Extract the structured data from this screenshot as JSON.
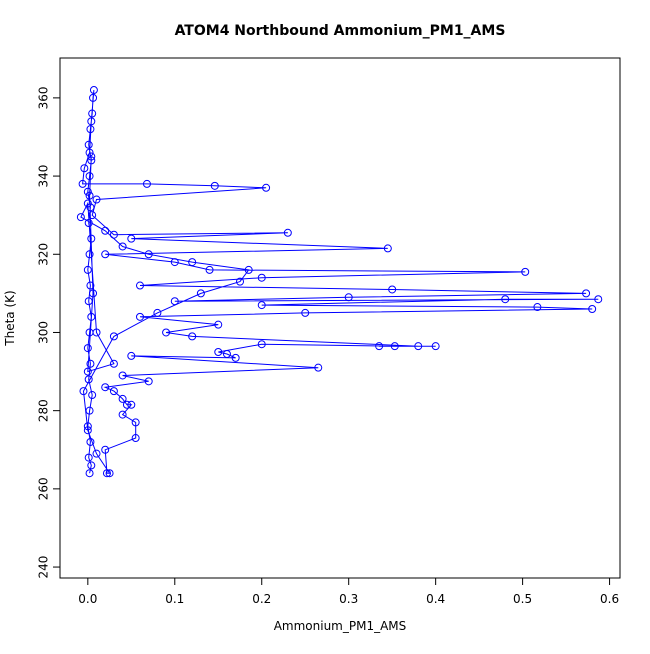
{
  "chart_data": {
    "type": "line",
    "title": "ATOM4 Northbound Ammonium_PM1_AMS",
    "x_label": "Ammonium_PM1_AMS",
    "y_label": "Theta (K)",
    "color": "#0000ff",
    "x": [
      0.002,
      0.004,
      0.001,
      0.003,
      0.0,
      0.002,
      0.005,
      0.001,
      0.003,
      0.0,
      0.002,
      0.004,
      0.001,
      0.003,
      0.0,
      0.002,
      0.004,
      0.001,
      0.003,
      0.0,
      0.002,
      0.004,
      0.001,
      0.003,
      0.005,
      0.006,
      0.007,
      0.004,
      0.002,
      -0.004,
      -0.006,
      0.068,
      0.146,
      0.205,
      0.01,
      0.005,
      0.03,
      0.23,
      0.05,
      0.345,
      0.02,
      0.1,
      0.14,
      0.503,
      0.2,
      0.06,
      0.35,
      0.573,
      0.3,
      0.1,
      0.587,
      0.48,
      0.2,
      0.517,
      0.58,
      0.25,
      0.06,
      0.15,
      0.09,
      0.12,
      0.38,
      0.4,
      0.335,
      0.353,
      0.2,
      0.15,
      0.16,
      0.17,
      0.05,
      0.265,
      0.04,
      0.07,
      0.02,
      0.03,
      0.04,
      0.045,
      0.05,
      0.04,
      0.055,
      0.055,
      0.02,
      0.022,
      0.025,
      0.01,
      0.0,
      -0.005,
      0.03,
      0.08,
      0.13,
      0.175,
      0.185,
      0.12,
      0.07,
      0.04,
      0.02,
      -0.008,
      0.0,
      0.01,
      0.03,
      0.0,
      0.006,
      0.002,
      0.004
    ],
    "values": [
      264,
      266,
      268,
      272,
      276,
      280,
      284,
      288,
      292,
      296,
      300,
      304,
      308,
      312,
      316,
      320,
      324,
      328,
      332,
      336,
      340,
      344,
      348,
      352,
      356,
      360,
      362,
      354,
      346,
      342,
      338,
      338,
      337.5,
      337,
      334,
      330,
      325,
      325.5,
      324,
      321.5,
      320,
      318,
      316,
      315.5,
      314,
      312,
      311,
      310,
      309,
      308,
      308.5,
      308.5,
      307,
      306.5,
      306,
      305,
      304,
      302,
      300,
      299,
      296.5,
      296.5,
      296.5,
      296.5,
      297,
      295,
      294.5,
      293.5,
      294,
      291,
      289,
      287.5,
      286,
      285,
      283,
      281.5,
      281.5,
      279,
      277,
      273,
      270,
      264,
      264,
      269,
      275,
      285,
      299,
      305,
      310,
      313,
      316,
      318,
      320,
      322,
      326,
      329.5,
      333,
      300,
      292,
      290,
      310,
      335,
      345
    ],
    "xlim": [
      -0.032,
      0.612
    ],
    "ylim": [
      237.2,
      370.2
    ],
    "xticks": [
      {
        "value": 0,
        "label": "0.0"
      },
      {
        "value": 0.1,
        "label": "0.1"
      },
      {
        "value": 0.2,
        "label": "0.2"
      },
      {
        "value": 0.3,
        "label": "0.3"
      },
      {
        "value": 0.4,
        "label": "0.4"
      },
      {
        "value": 0.5,
        "label": "0.5"
      },
      {
        "value": 0.6,
        "label": "0.6"
      }
    ],
    "yticks": [
      240,
      260,
      280,
      300,
      320,
      340,
      360
    ]
  }
}
